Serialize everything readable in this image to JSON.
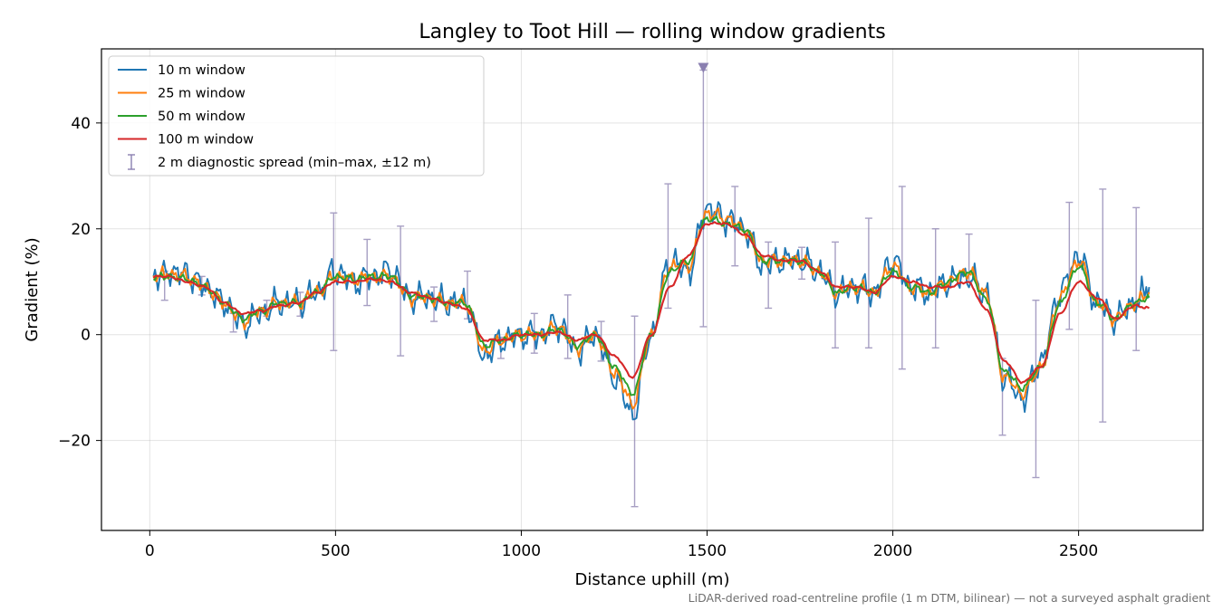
{
  "chart_data": {
    "type": "line",
    "title": "Langley to Toot Hill — rolling window gradients",
    "xlabel": "Distance uphill (m)",
    "ylabel": "Gradient (%)",
    "xlim": [
      -130,
      2835
    ],
    "ylim": [
      -37,
      54
    ],
    "x_ticks": [
      0,
      500,
      1000,
      1500,
      2000,
      2500
    ],
    "y_ticks": [
      -20,
      0,
      20,
      40
    ],
    "grid": true,
    "legend_position": "top-left",
    "footnote": "LiDAR-derived road-centreline profile (1 m DTM, bilinear) — not a surveyed asphalt gradient",
    "x": [
      10,
      50,
      100,
      150,
      200,
      250,
      300,
      350,
      400,
      450,
      500,
      550,
      600,
      650,
      700,
      750,
      800,
      850,
      900,
      950,
      1000,
      1050,
      1100,
      1150,
      1200,
      1250,
      1300,
      1350,
      1400,
      1450,
      1500,
      1550,
      1600,
      1650,
      1700,
      1750,
      1800,
      1850,
      1900,
      1950,
      2000,
      2050,
      2100,
      2150,
      2200,
      2250,
      2300,
      2350,
      2400,
      2450,
      2500,
      2550,
      2600,
      2650,
      2690
    ],
    "series": [
      {
        "name": "10 m window",
        "color": "#1f77b4",
        "values": [
          11,
          12,
          11.5,
          9,
          6,
          2,
          4,
          6,
          6,
          8,
          12,
          10,
          11,
          12,
          7,
          7,
          6,
          6,
          -4,
          -1,
          0,
          0,
          2,
          -3,
          0,
          -8,
          -15,
          0,
          14,
          12,
          24,
          22,
          20,
          13,
          14,
          14,
          12,
          8,
          9,
          8,
          14,
          9,
          8,
          10,
          11,
          8,
          -8,
          -12,
          -5,
          8,
          15,
          6,
          3,
          6,
          9
        ]
      },
      {
        "name": "25 m window",
        "color": "#ff7f0e",
        "values": [
          11,
          11.5,
          11,
          9,
          6,
          2.5,
          4.5,
          6,
          6,
          8,
          11,
          10.5,
          11,
          11,
          7,
          7,
          6,
          6,
          -3,
          -1,
          0,
          0,
          1.5,
          -2.5,
          0,
          -7,
          -13,
          0,
          13,
          13,
          23,
          22,
          20,
          14,
          14,
          14,
          12,
          8,
          9,
          8,
          13,
          9,
          8,
          10,
          12,
          8,
          -8,
          -11,
          -6,
          7,
          14,
          6,
          3,
          6,
          8
        ]
      },
      {
        "name": "50 m window",
        "color": "#2ca02c",
        "values": [
          11,
          11,
          10.5,
          9,
          6,
          3,
          4.5,
          6,
          6,
          8,
          11,
          10.5,
          11,
          11,
          7.5,
          7,
          6,
          6,
          -2,
          -1,
          0,
          0,
          1,
          -2,
          0,
          -6,
          -11,
          0,
          12,
          14,
          22,
          21,
          20,
          14,
          14,
          14,
          12,
          8,
          9,
          8,
          12,
          9,
          8,
          10,
          12,
          7,
          -7,
          -10,
          -6,
          6,
          13,
          6,
          3,
          6,
          7
        ]
      },
      {
        "name": "100 m window",
        "color": "#d62728",
        "values": [
          11,
          11,
          10,
          9,
          6,
          4,
          4.5,
          5.5,
          6,
          8,
          10,
          10,
          10.5,
          10,
          8,
          7,
          6,
          5,
          -1,
          -1,
          0,
          0,
          0.5,
          -1,
          0,
          -4,
          -8,
          0,
          9,
          15,
          21,
          21,
          19,
          15,
          14,
          14,
          12,
          9,
          9,
          8,
          11,
          10,
          9,
          9,
          10,
          5,
          -5,
          -9,
          -6,
          4,
          10,
          7,
          3,
          5.5,
          5
        ]
      }
    ],
    "error_bars": {
      "name": "2 m diagnostic spread (min–max, ±12 m)",
      "color": "#8a7fb0",
      "points": [
        {
          "x": 40,
          "low": 6.5,
          "high": 12
        },
        {
          "x": 140,
          "low": 7.5,
          "high": 11
        },
        {
          "x": 225,
          "low": 0.5,
          "high": 4
        },
        {
          "x": 315,
          "low": 3.5,
          "high": 6.5
        },
        {
          "x": 405,
          "low": 3.5,
          "high": 8
        },
        {
          "x": 495,
          "low": -3,
          "high": 23
        },
        {
          "x": 585,
          "low": 5.5,
          "high": 18
        },
        {
          "x": 675,
          "low": -4,
          "high": 20.5
        },
        {
          "x": 765,
          "low": 2.5,
          "high": 9
        },
        {
          "x": 855,
          "low": 3,
          "high": 12
        },
        {
          "x": 945,
          "low": -4.5,
          "high": -0.5
        },
        {
          "x": 1035,
          "low": -3.5,
          "high": 4
        },
        {
          "x": 1125,
          "low": -4.5,
          "high": 7.5
        },
        {
          "x": 1215,
          "low": -5,
          "high": 2.5
        },
        {
          "x": 1305,
          "low": -32.5,
          "high": 3.5
        },
        {
          "x": 1395,
          "low": 5,
          "high": 28.5
        },
        {
          "x": 1490,
          "low": 1.5,
          "high": 50
        },
        {
          "x": 1575,
          "low": 13,
          "high": 28
        },
        {
          "x": 1665,
          "low": 5,
          "high": 17.5
        },
        {
          "x": 1755,
          "low": 10.5,
          "high": 16.5
        },
        {
          "x": 1845,
          "low": -2.5,
          "high": 17.5
        },
        {
          "x": 1935,
          "low": -2.5,
          "high": 22
        },
        {
          "x": 2025,
          "low": -6.5,
          "high": 28
        },
        {
          "x": 2115,
          "low": -2.5,
          "high": 20
        },
        {
          "x": 2205,
          "low": 10,
          "high": 19
        },
        {
          "x": 2295,
          "low": -19,
          "high": -4.5
        },
        {
          "x": 2385,
          "low": -27,
          "high": 6.5
        },
        {
          "x": 2475,
          "low": 1,
          "high": 25
        },
        {
          "x": 2565,
          "low": -16.5,
          "high": 27.5
        },
        {
          "x": 2655,
          "low": -3,
          "high": 24
        }
      ],
      "clipped_marker": {
        "x": 1490,
        "y": 50.5
      }
    }
  }
}
